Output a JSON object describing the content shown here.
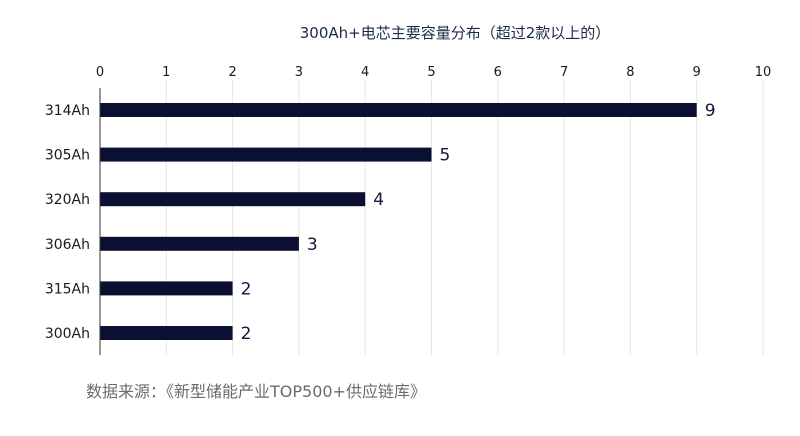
{
  "chart_data": {
    "type": "bar",
    "orientation": "horizontal",
    "title": "300Ah+电芯主要容量分布（超过2款以上的）",
    "categories": [
      "314Ah",
      "305Ah",
      "320Ah",
      "306Ah",
      "315Ah",
      "300Ah"
    ],
    "values": [
      9,
      5,
      4,
      3,
      2,
      2
    ],
    "xlim": [
      0,
      10
    ],
    "xticks": [
      "0",
      "1",
      "2",
      "3",
      "4",
      "5",
      "6",
      "7",
      "8",
      "9",
      "10"
    ],
    "x_axis_position": "top",
    "grid": true,
    "legend": "none",
    "bar_color": "#0b1033"
  },
  "source_note": "数据来源：《新型储能产业TOP500+供应链库》"
}
